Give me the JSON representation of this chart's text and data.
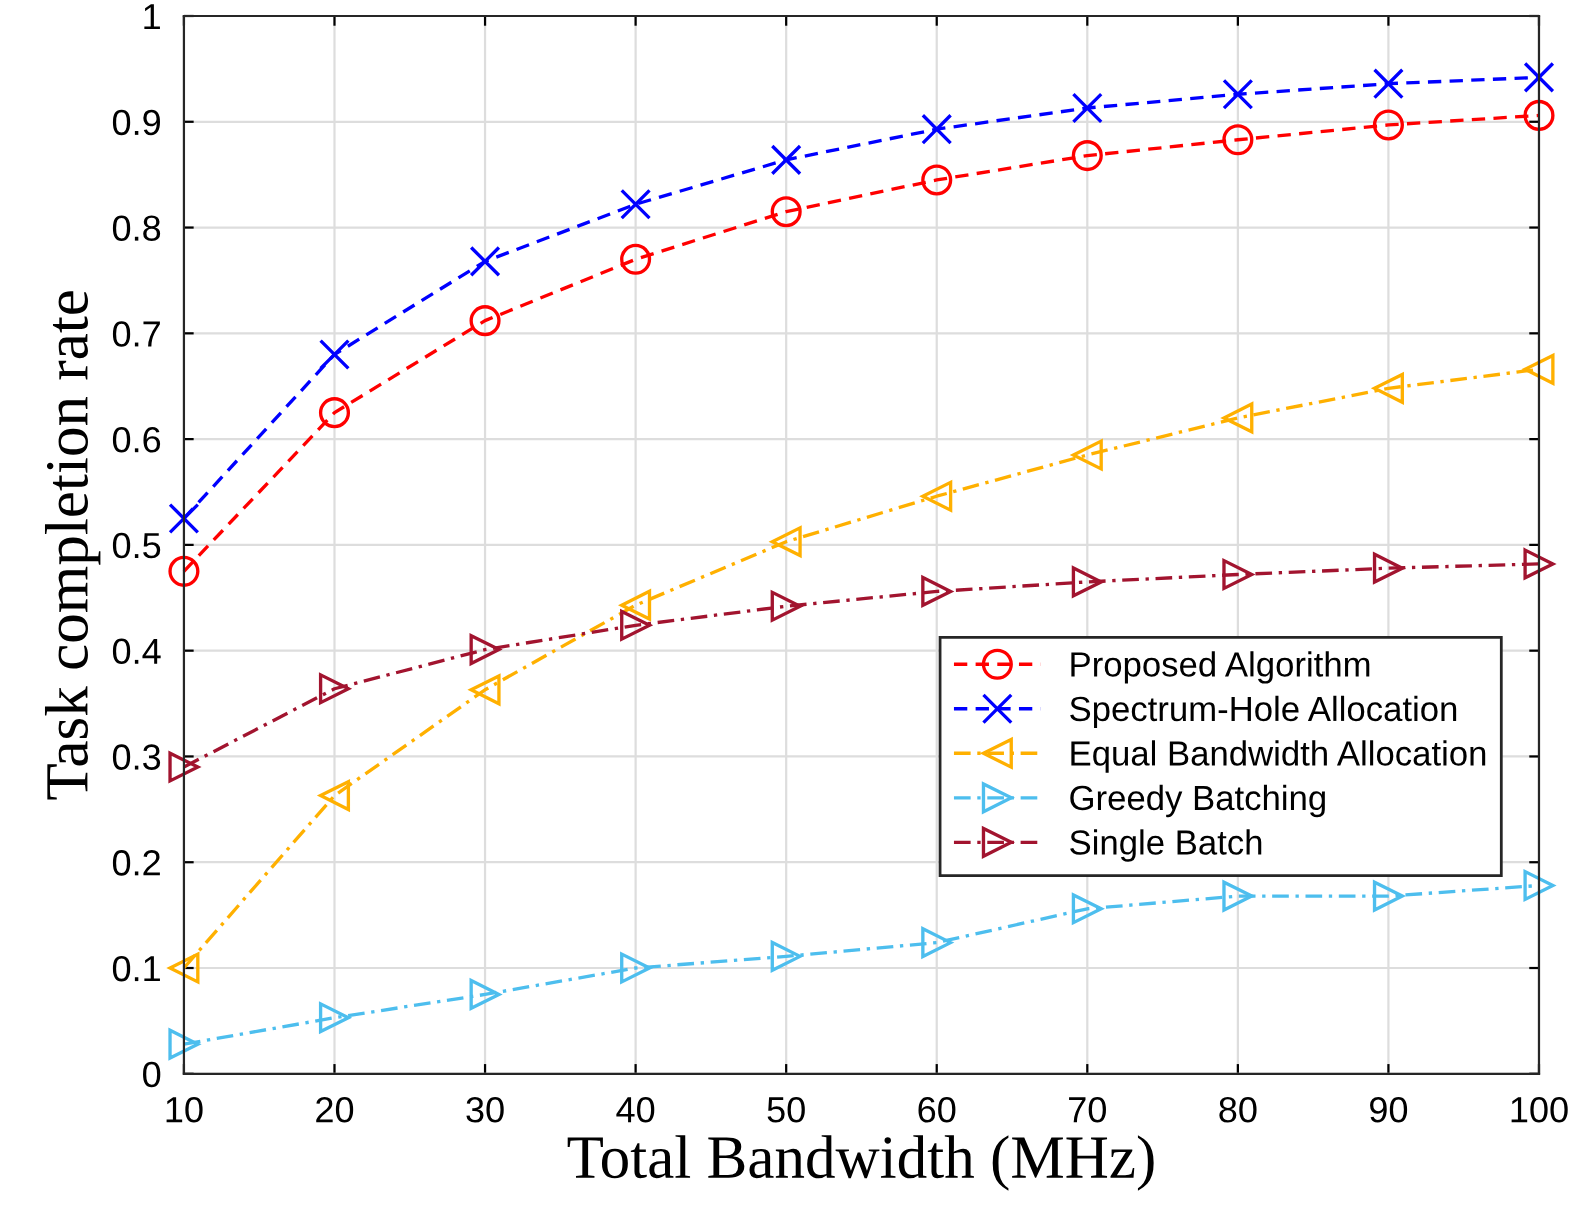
{
  "chart_data": {
    "type": "line",
    "xlabel": "Total Bandwidth (MHz)",
    "ylabel": "Task completion rate",
    "x": [
      10,
      20,
      30,
      40,
      50,
      60,
      70,
      80,
      90,
      100
    ],
    "xlim": [
      10,
      100
    ],
    "xticks": [
      10,
      20,
      30,
      40,
      50,
      60,
      70,
      80,
      90,
      100
    ],
    "ylim": [
      0,
      1
    ],
    "yticks": [
      0,
      0.1,
      0.2,
      0.3,
      0.4,
      0.5,
      0.6,
      0.7,
      0.8,
      0.9,
      1
    ],
    "grid": true,
    "legend": "center right",
    "series": [
      {
        "name": "Proposed Algorithm",
        "color": "#ff0000",
        "marker": "circle",
        "line_style": "dashed",
        "values": [
          0.475,
          0.625,
          0.712,
          0.77,
          0.815,
          0.845,
          0.868,
          0.883,
          0.897,
          0.906
        ]
      },
      {
        "name": "Spectrum-Hole Allocation",
        "color": "#0000ff",
        "marker": "cross",
        "line_style": "dashed",
        "values": [
          0.525,
          0.68,
          0.768,
          0.822,
          0.864,
          0.893,
          0.913,
          0.926,
          0.936,
          0.942
        ]
      },
      {
        "name": "Equal Bandwidth Allocation",
        "color": "#ffb000",
        "marker": "triangle-left",
        "line_style": "dashdot",
        "values": [
          0.1,
          0.263,
          0.363,
          0.443,
          0.503,
          0.546,
          0.585,
          0.62,
          0.648,
          0.666
        ]
      },
      {
        "name": "Greedy Batching",
        "color": "#4dbeee",
        "marker": "triangle-right",
        "line_style": "dashdot",
        "values": [
          0.028,
          0.053,
          0.075,
          0.1,
          0.111,
          0.124,
          0.156,
          0.168,
          0.168,
          0.178
        ]
      },
      {
        "name": "Single Batch",
        "color": "#a2142f",
        "marker": "triangle-right",
        "line_style": "dashdot",
        "values": [
          0.29,
          0.364,
          0.401,
          0.424,
          0.442,
          0.456,
          0.465,
          0.472,
          0.478,
          0.482
        ]
      }
    ]
  }
}
